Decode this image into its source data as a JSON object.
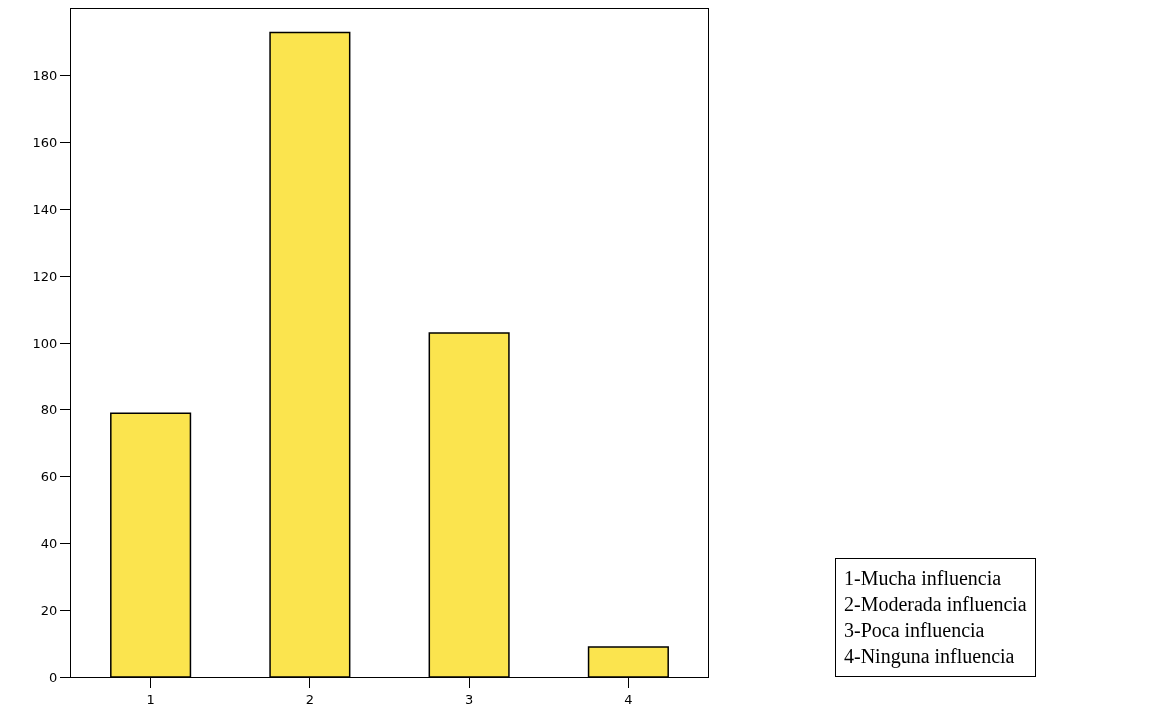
{
  "chart_data": {
    "type": "bar",
    "categories": [
      "1",
      "2",
      "3",
      "4"
    ],
    "values": [
      79,
      193,
      103,
      9
    ],
    "color": "#fbe44e",
    "ylim": [
      0,
      200
    ],
    "yticks": [
      0,
      20,
      40,
      60,
      80,
      100,
      120,
      140,
      160,
      180
    ],
    "legend": false,
    "annotations": [
      "1-Mucha influencia",
      "2-Moderada influencia",
      "3-Poca influencia",
      "4-Ninguna influencia"
    ]
  }
}
